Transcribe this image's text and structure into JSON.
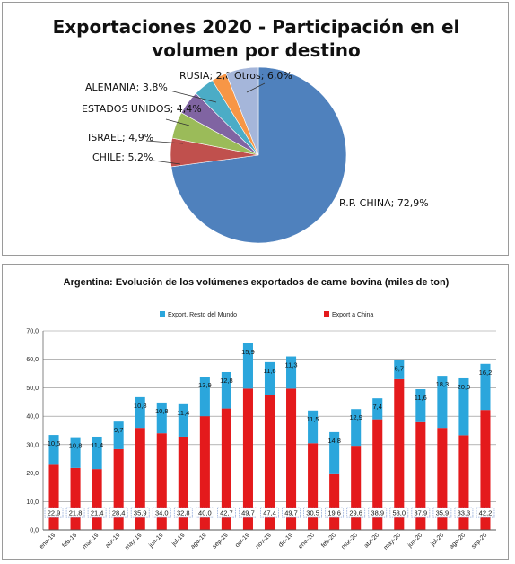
{
  "chart_data": [
    {
      "type": "pie",
      "title": "Exportaciones 2020 - Participación en el volumen por destino",
      "title_lines": [
        "Exportaciones 2020 - Participación en el",
        "volumen por destino"
      ],
      "slices": [
        {
          "label": "R.P. CHINA; 72,9%",
          "value": 72.9,
          "color": "#4f81bd"
        },
        {
          "label": "CHILE; 5,2%",
          "value": 5.2,
          "color": "#c0504d"
        },
        {
          "label": "ISRAEL; 4,9%",
          "value": 4.9,
          "color": "#9bbb59"
        },
        {
          "label": "ESTADOS UNIDOS; 4,4%",
          "value": 4.4,
          "color": "#8064a2"
        },
        {
          "label": "ALEMANIA; 3,8%",
          "value": 3.8,
          "color": "#4bacc6"
        },
        {
          "label": "RUSIA; 2,8%",
          "value": 2.8,
          "color": "#f79646"
        },
        {
          "label": "Otros; 6,0%",
          "value": 6.0,
          "color": "#a5b6da"
        }
      ]
    },
    {
      "type": "bar",
      "stacked": true,
      "title": "Argentina: Evolución de los volúmenes exportados de carne bovina (miles de ton)",
      "categories": [
        "ene-19",
        "feb-19",
        "mar-19",
        "abr-19",
        "may-19",
        "jun-19",
        "jul-19",
        "ago-19",
        "sep-19",
        "oct-19",
        "nov-19",
        "dic-19",
        "ene-20",
        "feb-20",
        "mar-20",
        "abr-20",
        "may-20",
        "jun-20",
        "jul-20",
        "ago-20",
        "sep-20"
      ],
      "series": [
        {
          "name": "Export a China",
          "color": "#e41a1c",
          "values": [
            22.9,
            21.8,
            21.4,
            28.4,
            35.9,
            34.0,
            32.8,
            40.0,
            42.7,
            49.7,
            47.4,
            49.7,
            30.5,
            19.6,
            29.6,
            38.9,
            53.0,
            37.9,
            35.9,
            33.3,
            42.2
          ],
          "labels": [
            "22,9",
            "21,8",
            "21,4",
            "28,4",
            "35,9",
            "34,0",
            "32,8",
            "40,0",
            "42,7",
            "49,7",
            "47,4",
            "49,7",
            "30,5",
            "19,6",
            "29,6",
            "38,9",
            "53,0",
            "37,9",
            "35,9",
            "33,3",
            "42,2"
          ]
        },
        {
          "name": "Export. Resto del Mundo",
          "color": "#2ba6dc",
          "values": [
            10.5,
            10.8,
            11.4,
            9.7,
            10.8,
            10.8,
            11.4,
            13.9,
            12.8,
            15.9,
            11.6,
            11.3,
            11.5,
            14.8,
            12.9,
            7.4,
            6.7,
            11.6,
            18.3,
            20.0,
            16.2
          ],
          "labels": [
            "10,5",
            "10,8",
            "11,4",
            "9,7",
            "10,8",
            "10,8",
            "11,4",
            "13,9",
            "12,8",
            "15,9",
            "11,6",
            "11,3",
            "11,5",
            "14,8",
            "12,9",
            "7,4",
            "6,7",
            "11,6",
            "18,3",
            "20,0",
            "16,2"
          ]
        }
      ],
      "legend": [
        {
          "label": "Export. Resto del Mundo",
          "color": "#2ba6dc"
        },
        {
          "label": "Export a China",
          "color": "#e41a1c"
        }
      ],
      "ylim": [
        0,
        70
      ],
      "yticks": [
        "0,0",
        "10,0",
        "20,0",
        "30,0",
        "40,0",
        "50,0",
        "60,0",
        "70,0"
      ],
      "grid": true,
      "legend_position": "top"
    }
  ]
}
